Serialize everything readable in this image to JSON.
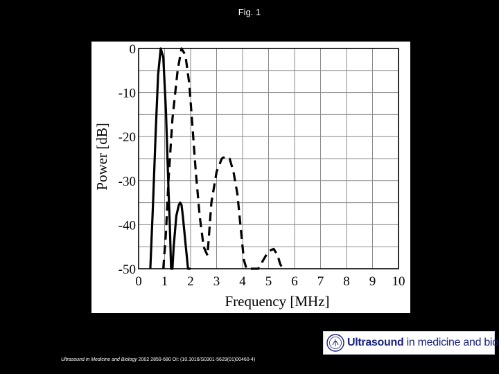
{
  "slide": {
    "title": "Fig. 1",
    "citation_journal": "Ultrasound in Medicine and Biology",
    "citation_details": " 2002 2859-680 OI: (10.1016/S0301-5629(01)00460-4)"
  },
  "logo": {
    "strong": "Ultrasound",
    "rest": " in medicine and biology",
    "color": "#1a237e"
  },
  "chart_data": {
    "type": "line",
    "xlabel": "Frequency [MHz]",
    "ylabel": "Power [dB]",
    "xlim": [
      0,
      10
    ],
    "ylim": [
      -50,
      0
    ],
    "xticks": [
      "0",
      "1",
      "2",
      "3",
      "4",
      "5",
      "6",
      "7",
      "8",
      "9",
      "10"
    ],
    "yticks": [
      "0",
      "-10",
      "-20",
      "-30",
      "-40",
      "-50"
    ],
    "grid": true,
    "legend": "none",
    "series": [
      {
        "style": "solid",
        "x": [
          0.45,
          0.55,
          0.65,
          0.75,
          0.85,
          0.95,
          1.05,
          1.15,
          1.2,
          1.25,
          1.3,
          1.35,
          1.45,
          1.55,
          1.6,
          1.65,
          1.7,
          1.8,
          1.9,
          2.0
        ],
        "y": [
          -50,
          -36,
          -20,
          -6,
          0,
          -2,
          -14,
          -32,
          -40,
          -50,
          -50,
          -45,
          -38,
          -35.5,
          -35,
          -35.5,
          -38,
          -44,
          -50,
          -50
        ]
      },
      {
        "style": "dashed",
        "x": [
          0.95,
          1.05,
          1.15,
          1.3,
          1.5,
          1.65,
          1.8,
          1.95,
          2.05,
          2.2,
          2.35,
          2.5,
          2.65,
          2.8,
          3.0,
          3.2,
          3.35,
          3.5,
          3.65,
          3.8,
          3.95,
          4.05,
          4.15,
          4.3,
          4.45,
          4.6,
          4.8,
          5.0,
          5.2,
          5.35,
          5.45,
          5.55
        ],
        "y": [
          -50,
          -42,
          -30,
          -16,
          -5,
          0,
          -1.5,
          -8,
          -16,
          -28,
          -38,
          -45,
          -47,
          -35,
          -28,
          -25,
          -24.5,
          -25,
          -28,
          -33,
          -42,
          -48,
          -50,
          -50,
          -50,
          -50,
          -48,
          -46,
          -45.5,
          -47,
          -49,
          -50
        ]
      }
    ]
  }
}
